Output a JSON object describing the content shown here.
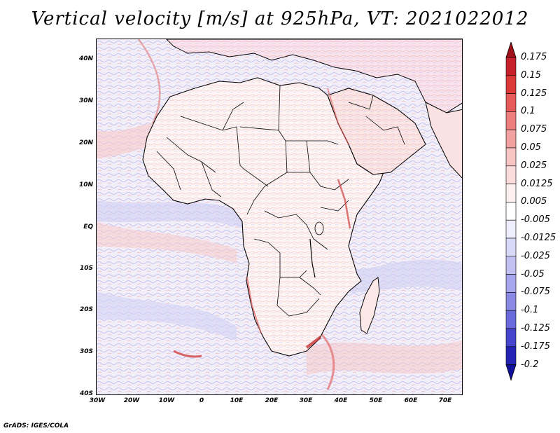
{
  "title": "Vertical velocity [m/s] at 925hPa, VT: 2021022012",
  "credit": "GrADS: IGES/COLA",
  "map": {
    "lat_labels": [
      "40N",
      "30N",
      "20N",
      "10N",
      "EQ",
      "10S",
      "20S",
      "30S",
      "40S"
    ],
    "lon_labels": [
      "30W",
      "20W",
      "10W",
      "0",
      "10E",
      "20E",
      "30E",
      "40E",
      "50E",
      "60E",
      "70E"
    ]
  },
  "colorbar": {
    "labels": [
      "0.175",
      "0.15",
      "0.125",
      "0.1",
      "0.075",
      "0.05",
      "0.025",
      "0.0125",
      "0.005",
      "-0.005",
      "-0.0125",
      "-0.025",
      "-0.05",
      "-0.075",
      "-0.1",
      "-0.125",
      "-0.175",
      "-0.2"
    ],
    "colors": [
      "#a01018",
      "#c8202a",
      "#dc3838",
      "#e65a5a",
      "#ee7e7e",
      "#f3a0a0",
      "#f8c4c4",
      "#fbdcdc",
      "#fdf0f0",
      "#ffffff",
      "#eeeefc",
      "#d8d8f8",
      "#c0c0f2",
      "#a6a6ec",
      "#8a8ae4",
      "#6a6adc",
      "#4444cc",
      "#2222b4",
      "#10109a"
    ]
  }
}
